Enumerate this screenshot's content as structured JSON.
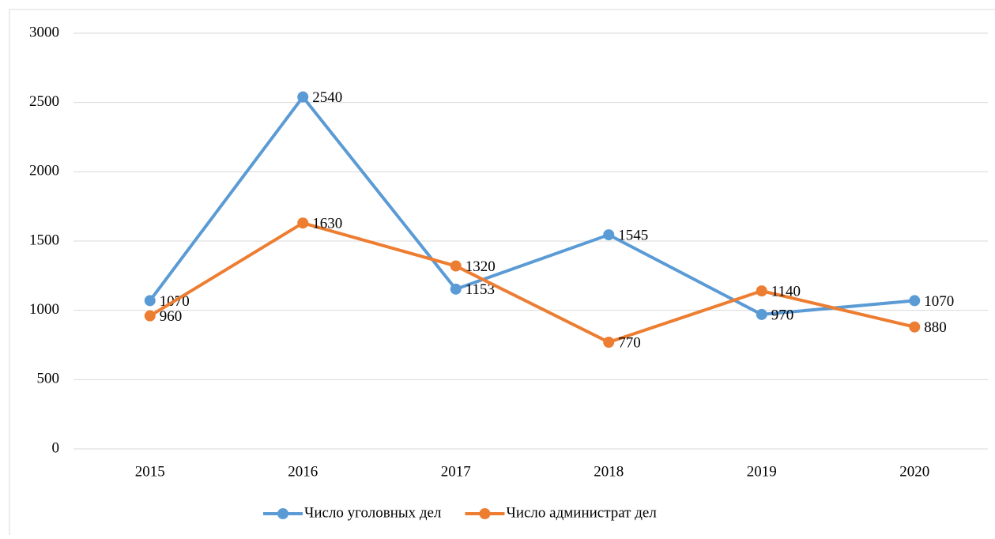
{
  "chart_data": {
    "type": "line",
    "categories": [
      "2015",
      "2016",
      "2017",
      "2018",
      "2019",
      "2020"
    ],
    "series": [
      {
        "name": "Число уголовных дел",
        "color": "#5b9bd5",
        "values": [
          1070,
          2540,
          1153,
          1545,
          970,
          1070
        ]
      },
      {
        "name": "Число администрат дел",
        "color": "#ed7d31",
        "values": [
          960,
          1630,
          1320,
          770,
          1140,
          880
        ]
      }
    ],
    "ylim": [
      0,
      3000
    ],
    "yticks": [
      0,
      500,
      1000,
      1500,
      2000,
      2500,
      3000
    ],
    "grid": true,
    "legend": "bottom",
    "data_labels": true
  }
}
